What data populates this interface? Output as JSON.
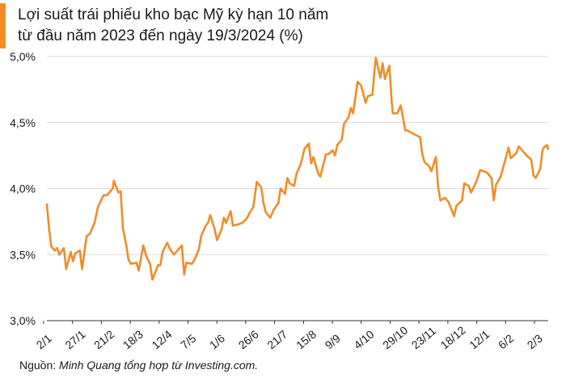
{
  "source": {
    "label": "Nguồn:",
    "text": "Minh Quang tổng hợp từ Investing.com."
  },
  "colors": {
    "accent": "#f28c28",
    "line": "#f28c28",
    "grid": "#d9d9d9",
    "axis": "#333333",
    "text": "#1a1a1a"
  },
  "chart_data": {
    "type": "line",
    "title": "Lợi suất trái phiếu kho bạc Mỹ kỳ hạn 10 năm",
    "subtitle": "từ đầu năm 2023 đến ngày 19/3/2024 (%)",
    "xlabel": "",
    "ylabel": "",
    "ylim": [
      3.0,
      5.0
    ],
    "grid": true,
    "yticks": [
      "3,0%",
      "3,5%",
      "4,0%",
      "4,5%",
      "5,0%"
    ],
    "ytick_values": [
      3.0,
      3.5,
      4.0,
      4.5,
      5.0
    ],
    "xticks": [
      "2/1",
      "27/1",
      "21/2",
      "18/3",
      "12/4",
      "7/5",
      "1/6",
      "26/6",
      "21/7",
      "15/8",
      "9/9",
      "4/10",
      "29/10",
      "23/11",
      "18/12",
      "12/1",
      "6/2",
      "2/3"
    ],
    "x_range": [
      "2023-01-02",
      "2024-03-19"
    ],
    "series": [
      {
        "points": [
          [
            "2023-01-02",
            3.88
          ],
          [
            "2023-01-04",
            3.69
          ],
          [
            "2023-01-06",
            3.56
          ],
          [
            "2023-01-09",
            3.53
          ],
          [
            "2023-01-11",
            3.55
          ],
          [
            "2023-01-13",
            3.5
          ],
          [
            "2023-01-17",
            3.55
          ],
          [
            "2023-01-19",
            3.39
          ],
          [
            "2023-01-23",
            3.52
          ],
          [
            "2023-01-25",
            3.45
          ],
          [
            "2023-01-27",
            3.51
          ],
          [
            "2023-01-31",
            3.53
          ],
          [
            "2023-02-02",
            3.39
          ],
          [
            "2023-02-06",
            3.64
          ],
          [
            "2023-02-09",
            3.66
          ],
          [
            "2023-02-13",
            3.74
          ],
          [
            "2023-02-16",
            3.86
          ],
          [
            "2023-02-21",
            3.95
          ],
          [
            "2023-02-24",
            3.95
          ],
          [
            "2023-03-01",
            4.0
          ],
          [
            "2023-03-02",
            4.06
          ],
          [
            "2023-03-06",
            3.97
          ],
          [
            "2023-03-08",
            3.98
          ],
          [
            "2023-03-10",
            3.7
          ],
          [
            "2023-03-13",
            3.57
          ],
          [
            "2023-03-15",
            3.46
          ],
          [
            "2023-03-17",
            3.43
          ],
          [
            "2023-03-22",
            3.44
          ],
          [
            "2023-03-24",
            3.38
          ],
          [
            "2023-03-28",
            3.57
          ],
          [
            "2023-03-31",
            3.48
          ],
          [
            "2023-04-03",
            3.43
          ],
          [
            "2023-04-05",
            3.31
          ],
          [
            "2023-04-10",
            3.42
          ],
          [
            "2023-04-12",
            3.42
          ],
          [
            "2023-04-14",
            3.52
          ],
          [
            "2023-04-18",
            3.59
          ],
          [
            "2023-04-20",
            3.55
          ],
          [
            "2023-04-24",
            3.5
          ],
          [
            "2023-04-27",
            3.53
          ],
          [
            "2023-05-01",
            3.57
          ],
          [
            "2023-05-03",
            3.35
          ],
          [
            "2023-05-05",
            3.44
          ],
          [
            "2023-05-10",
            3.43
          ],
          [
            "2023-05-12",
            3.46
          ],
          [
            "2023-05-16",
            3.54
          ],
          [
            "2023-05-18",
            3.64
          ],
          [
            "2023-05-22",
            3.72
          ],
          [
            "2023-05-24",
            3.74
          ],
          [
            "2023-05-26",
            3.8
          ],
          [
            "2023-05-30",
            3.69
          ],
          [
            "2023-06-01",
            3.61
          ],
          [
            "2023-06-05",
            3.69
          ],
          [
            "2023-06-07",
            3.78
          ],
          [
            "2023-06-09",
            3.74
          ],
          [
            "2023-06-13",
            3.83
          ],
          [
            "2023-06-15",
            3.72
          ],
          [
            "2023-06-20",
            3.73
          ],
          [
            "2023-06-23",
            3.74
          ],
          [
            "2023-06-27",
            3.77
          ],
          [
            "2023-06-30",
            3.82
          ],
          [
            "2023-07-03",
            3.86
          ],
          [
            "2023-07-06",
            4.05
          ],
          [
            "2023-07-10",
            4.01
          ],
          [
            "2023-07-12",
            3.89
          ],
          [
            "2023-07-14",
            3.82
          ],
          [
            "2023-07-18",
            3.78
          ],
          [
            "2023-07-21",
            3.84
          ],
          [
            "2023-07-25",
            3.89
          ],
          [
            "2023-07-27",
            4.0
          ],
          [
            "2023-07-31",
            3.96
          ],
          [
            "2023-08-02",
            4.08
          ],
          [
            "2023-08-04",
            4.04
          ],
          [
            "2023-08-08",
            4.02
          ],
          [
            "2023-08-10",
            4.11
          ],
          [
            "2023-08-14",
            4.19
          ],
          [
            "2023-08-17",
            4.3
          ],
          [
            "2023-08-21",
            4.34
          ],
          [
            "2023-08-23",
            4.19
          ],
          [
            "2023-08-25",
            4.24
          ],
          [
            "2023-08-29",
            4.12
          ],
          [
            "2023-08-31",
            4.09
          ],
          [
            "2023-09-05",
            4.26
          ],
          [
            "2023-09-07",
            4.26
          ],
          [
            "2023-09-11",
            4.29
          ],
          [
            "2023-09-13",
            4.25
          ],
          [
            "2023-09-15",
            4.33
          ],
          [
            "2023-09-19",
            4.37
          ],
          [
            "2023-09-21",
            4.49
          ],
          [
            "2023-09-25",
            4.54
          ],
          [
            "2023-09-27",
            4.61
          ],
          [
            "2023-09-29",
            4.57
          ],
          [
            "2023-10-03",
            4.81
          ],
          [
            "2023-10-06",
            4.78
          ],
          [
            "2023-10-10",
            4.65
          ],
          [
            "2023-10-12",
            4.7
          ],
          [
            "2023-10-16",
            4.71
          ],
          [
            "2023-10-18",
            4.91
          ],
          [
            "2023-10-19",
            4.99
          ],
          [
            "2023-10-23",
            4.84
          ],
          [
            "2023-10-25",
            4.95
          ],
          [
            "2023-10-27",
            4.83
          ],
          [
            "2023-10-31",
            4.93
          ],
          [
            "2023-11-02",
            4.66
          ],
          [
            "2023-11-03",
            4.57
          ],
          [
            "2023-11-07",
            4.57
          ],
          [
            "2023-11-10",
            4.63
          ],
          [
            "2023-11-14",
            4.44
          ],
          [
            "2023-11-16",
            4.44
          ],
          [
            "2023-11-20",
            4.42
          ],
          [
            "2023-11-22",
            4.41
          ],
          [
            "2023-11-27",
            4.39
          ],
          [
            "2023-11-29",
            4.26
          ],
          [
            "2023-12-01",
            4.2
          ],
          [
            "2023-12-05",
            4.17
          ],
          [
            "2023-12-07",
            4.13
          ],
          [
            "2023-12-11",
            4.24
          ],
          [
            "2023-12-13",
            4.01
          ],
          [
            "2023-12-15",
            3.91
          ],
          [
            "2023-12-19",
            3.93
          ],
          [
            "2023-12-22",
            3.9
          ],
          [
            "2023-12-27",
            3.79
          ],
          [
            "2023-12-29",
            3.87
          ],
          [
            "2024-01-03",
            3.91
          ],
          [
            "2024-01-05",
            4.04
          ],
          [
            "2024-01-09",
            4.02
          ],
          [
            "2024-01-11",
            3.97
          ],
          [
            "2024-01-16",
            4.06
          ],
          [
            "2024-01-19",
            4.14
          ],
          [
            "2024-01-23",
            4.13
          ],
          [
            "2024-01-25",
            4.12
          ],
          [
            "2024-01-29",
            4.08
          ],
          [
            "2024-01-31",
            3.91
          ],
          [
            "2024-02-02",
            4.03
          ],
          [
            "2024-02-06",
            4.09
          ],
          [
            "2024-02-08",
            4.15
          ],
          [
            "2024-02-13",
            4.31
          ],
          [
            "2024-02-15",
            4.23
          ],
          [
            "2024-02-20",
            4.27
          ],
          [
            "2024-02-22",
            4.32
          ],
          [
            "2024-02-26",
            4.28
          ],
          [
            "2024-02-29",
            4.25
          ],
          [
            "2024-03-04",
            4.22
          ],
          [
            "2024-03-06",
            4.1
          ],
          [
            "2024-03-08",
            4.08
          ],
          [
            "2024-03-12",
            4.15
          ],
          [
            "2024-03-14",
            4.29
          ],
          [
            "2024-03-15",
            4.31
          ],
          [
            "2024-03-18",
            4.33
          ],
          [
            "2024-03-19",
            4.3
          ]
        ]
      }
    ]
  }
}
